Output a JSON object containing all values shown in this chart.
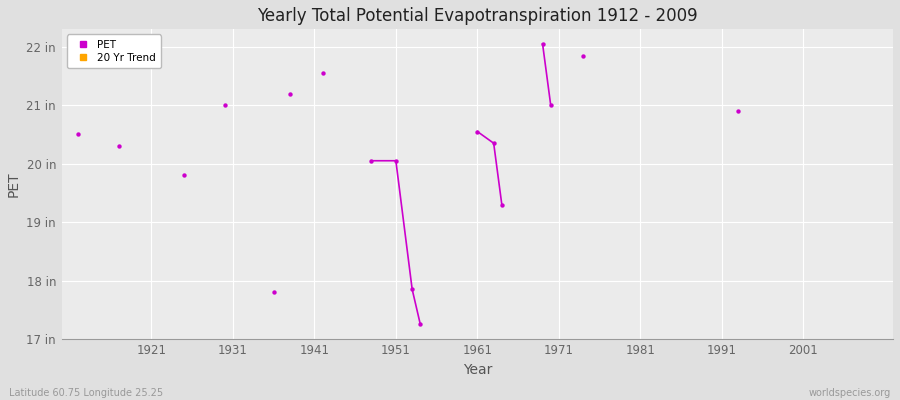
{
  "title": "Yearly Total Potential Evapotranspiration 1912 - 2009",
  "xlabel": "Year",
  "ylabel": "PET",
  "xlim": [
    1910,
    2012
  ],
  "ylim": [
    17.0,
    22.3
  ],
  "yticks": [
    17,
    18,
    19,
    20,
    21,
    22
  ],
  "ytick_labels": [
    "17 in",
    "18 in",
    "19 in",
    "20 in",
    "21 in",
    "22 in"
  ],
  "xticks": [
    1921,
    1931,
    1941,
    1951,
    1961,
    1971,
    1981,
    1991,
    2001
  ],
  "background_color": "#e0e0e0",
  "plot_bg_color": "#ebebeb",
  "grid_color": "#ffffff",
  "pet_color": "#cc00cc",
  "trend_color": "#ffa500",
  "isolated_points": [
    [
      1912,
      20.5
    ],
    [
      1917,
      20.3
    ],
    [
      1925,
      19.8
    ],
    [
      1930,
      21.0
    ],
    [
      1936,
      17.8
    ],
    [
      1938,
      21.2
    ],
    [
      1942,
      21.55
    ],
    [
      1974,
      21.85
    ],
    [
      1993,
      20.9
    ]
  ],
  "connected_segments": [
    [
      [
        1948,
        20.05
      ],
      [
        1951,
        20.05
      ],
      [
        1953,
        17.85
      ],
      [
        1954,
        17.25
      ]
    ],
    [
      [
        1961,
        20.55
      ],
      [
        1963,
        20.35
      ],
      [
        1964,
        19.3
      ]
    ],
    [
      [
        1969,
        22.05
      ],
      [
        1970,
        21.0
      ]
    ]
  ],
  "footer_left": "Latitude 60.75 Longitude 25.25",
  "footer_right": "worldspecies.org",
  "legend_pet": "PET",
  "legend_trend": "20 Yr Trend",
  "figsize": [
    9.0,
    4.0
  ],
  "dpi": 100
}
